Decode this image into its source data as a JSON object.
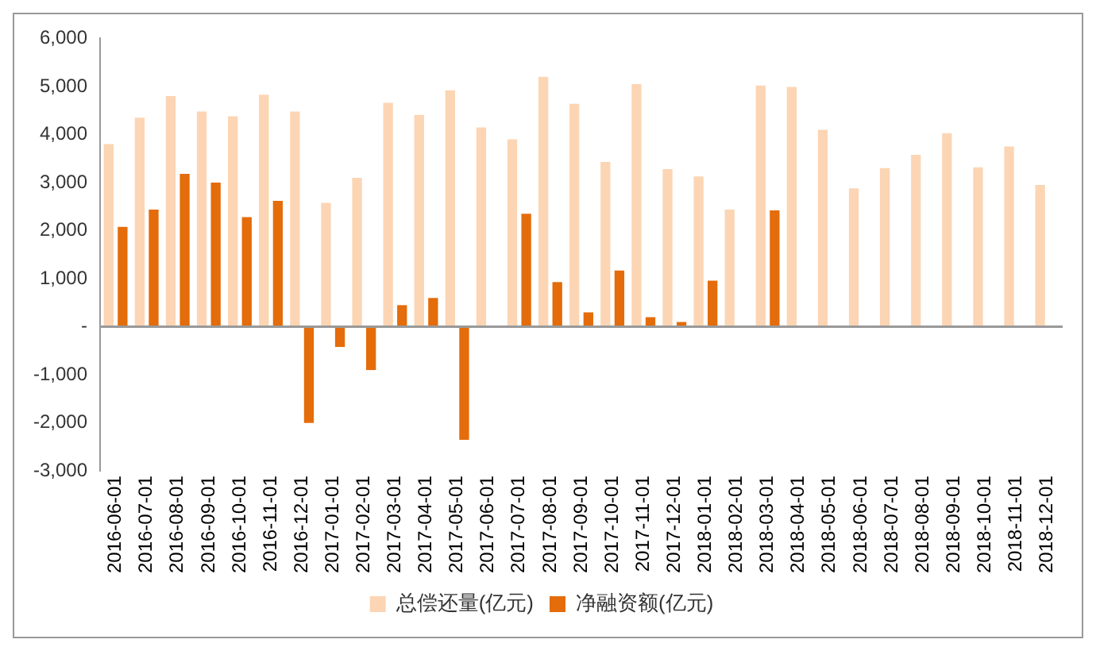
{
  "chart_data": {
    "type": "bar",
    "categories": [
      "2016-06-01",
      "2016-07-01",
      "2016-08-01",
      "2016-09-01",
      "2016-10-01",
      "2016-11-01",
      "2016-12-01",
      "2017-01-01",
      "2017-02-01",
      "2017-03-01",
      "2017-04-01",
      "2017-05-01",
      "2017-06-01",
      "2017-07-01",
      "2017-08-01",
      "2017-09-01",
      "2017-10-01",
      "2017-11-01",
      "2017-12-01",
      "2018-01-01",
      "2018-02-01",
      "2018-03-01",
      "2018-04-01",
      "2018-05-01",
      "2018-06-01",
      "2018-07-01",
      "2018-08-01",
      "2018-09-01",
      "2018-10-01",
      "2018-11-01",
      "2018-12-01"
    ],
    "series": [
      {
        "name": "总偿还量(亿元)",
        "color": "#fcd5b4",
        "values": [
          3800,
          4350,
          4800,
          4480,
          4380,
          4830,
          4480,
          2580,
          3100,
          4660,
          4410,
          4920,
          4150,
          3900,
          5200,
          4640,
          3430,
          5050,
          3280,
          3130,
          2440,
          5020,
          4990,
          4100,
          2880,
          3300,
          3580,
          4030,
          3320,
          3750,
          2950
        ]
      },
      {
        "name": "净融资额(亿元)",
        "color": "#e46c0a",
        "values": [
          2080,
          2440,
          3180,
          3000,
          2280,
          2620,
          -2000,
          -420,
          -900,
          450,
          600,
          -2350,
          null,
          2350,
          930,
          300,
          1170,
          200,
          100,
          960,
          null,
          2420,
          null,
          null,
          null,
          null,
          null,
          null,
          null,
          null,
          null
        ]
      }
    ],
    "ylim": [
      -3000,
      6000
    ],
    "yticks": [
      {
        "value": -3000,
        "label": "-3,000"
      },
      {
        "value": -2000,
        "label": "-2,000"
      },
      {
        "value": -1000,
        "label": "-1,000"
      },
      {
        "value": 0,
        "label": "-"
      },
      {
        "value": 1000,
        "label": "1,000"
      },
      {
        "value": 2000,
        "label": "2,000"
      },
      {
        "value": 3000,
        "label": "3,000"
      },
      {
        "value": 4000,
        "label": "4,000"
      },
      {
        "value": 5000,
        "label": "5,000"
      },
      {
        "value": 6000,
        "label": "6,000"
      }
    ],
    "grid": false,
    "ref_lines": [
      {
        "axis": "y",
        "value": 0,
        "color": "#999999"
      }
    ],
    "legend": "bottom"
  }
}
